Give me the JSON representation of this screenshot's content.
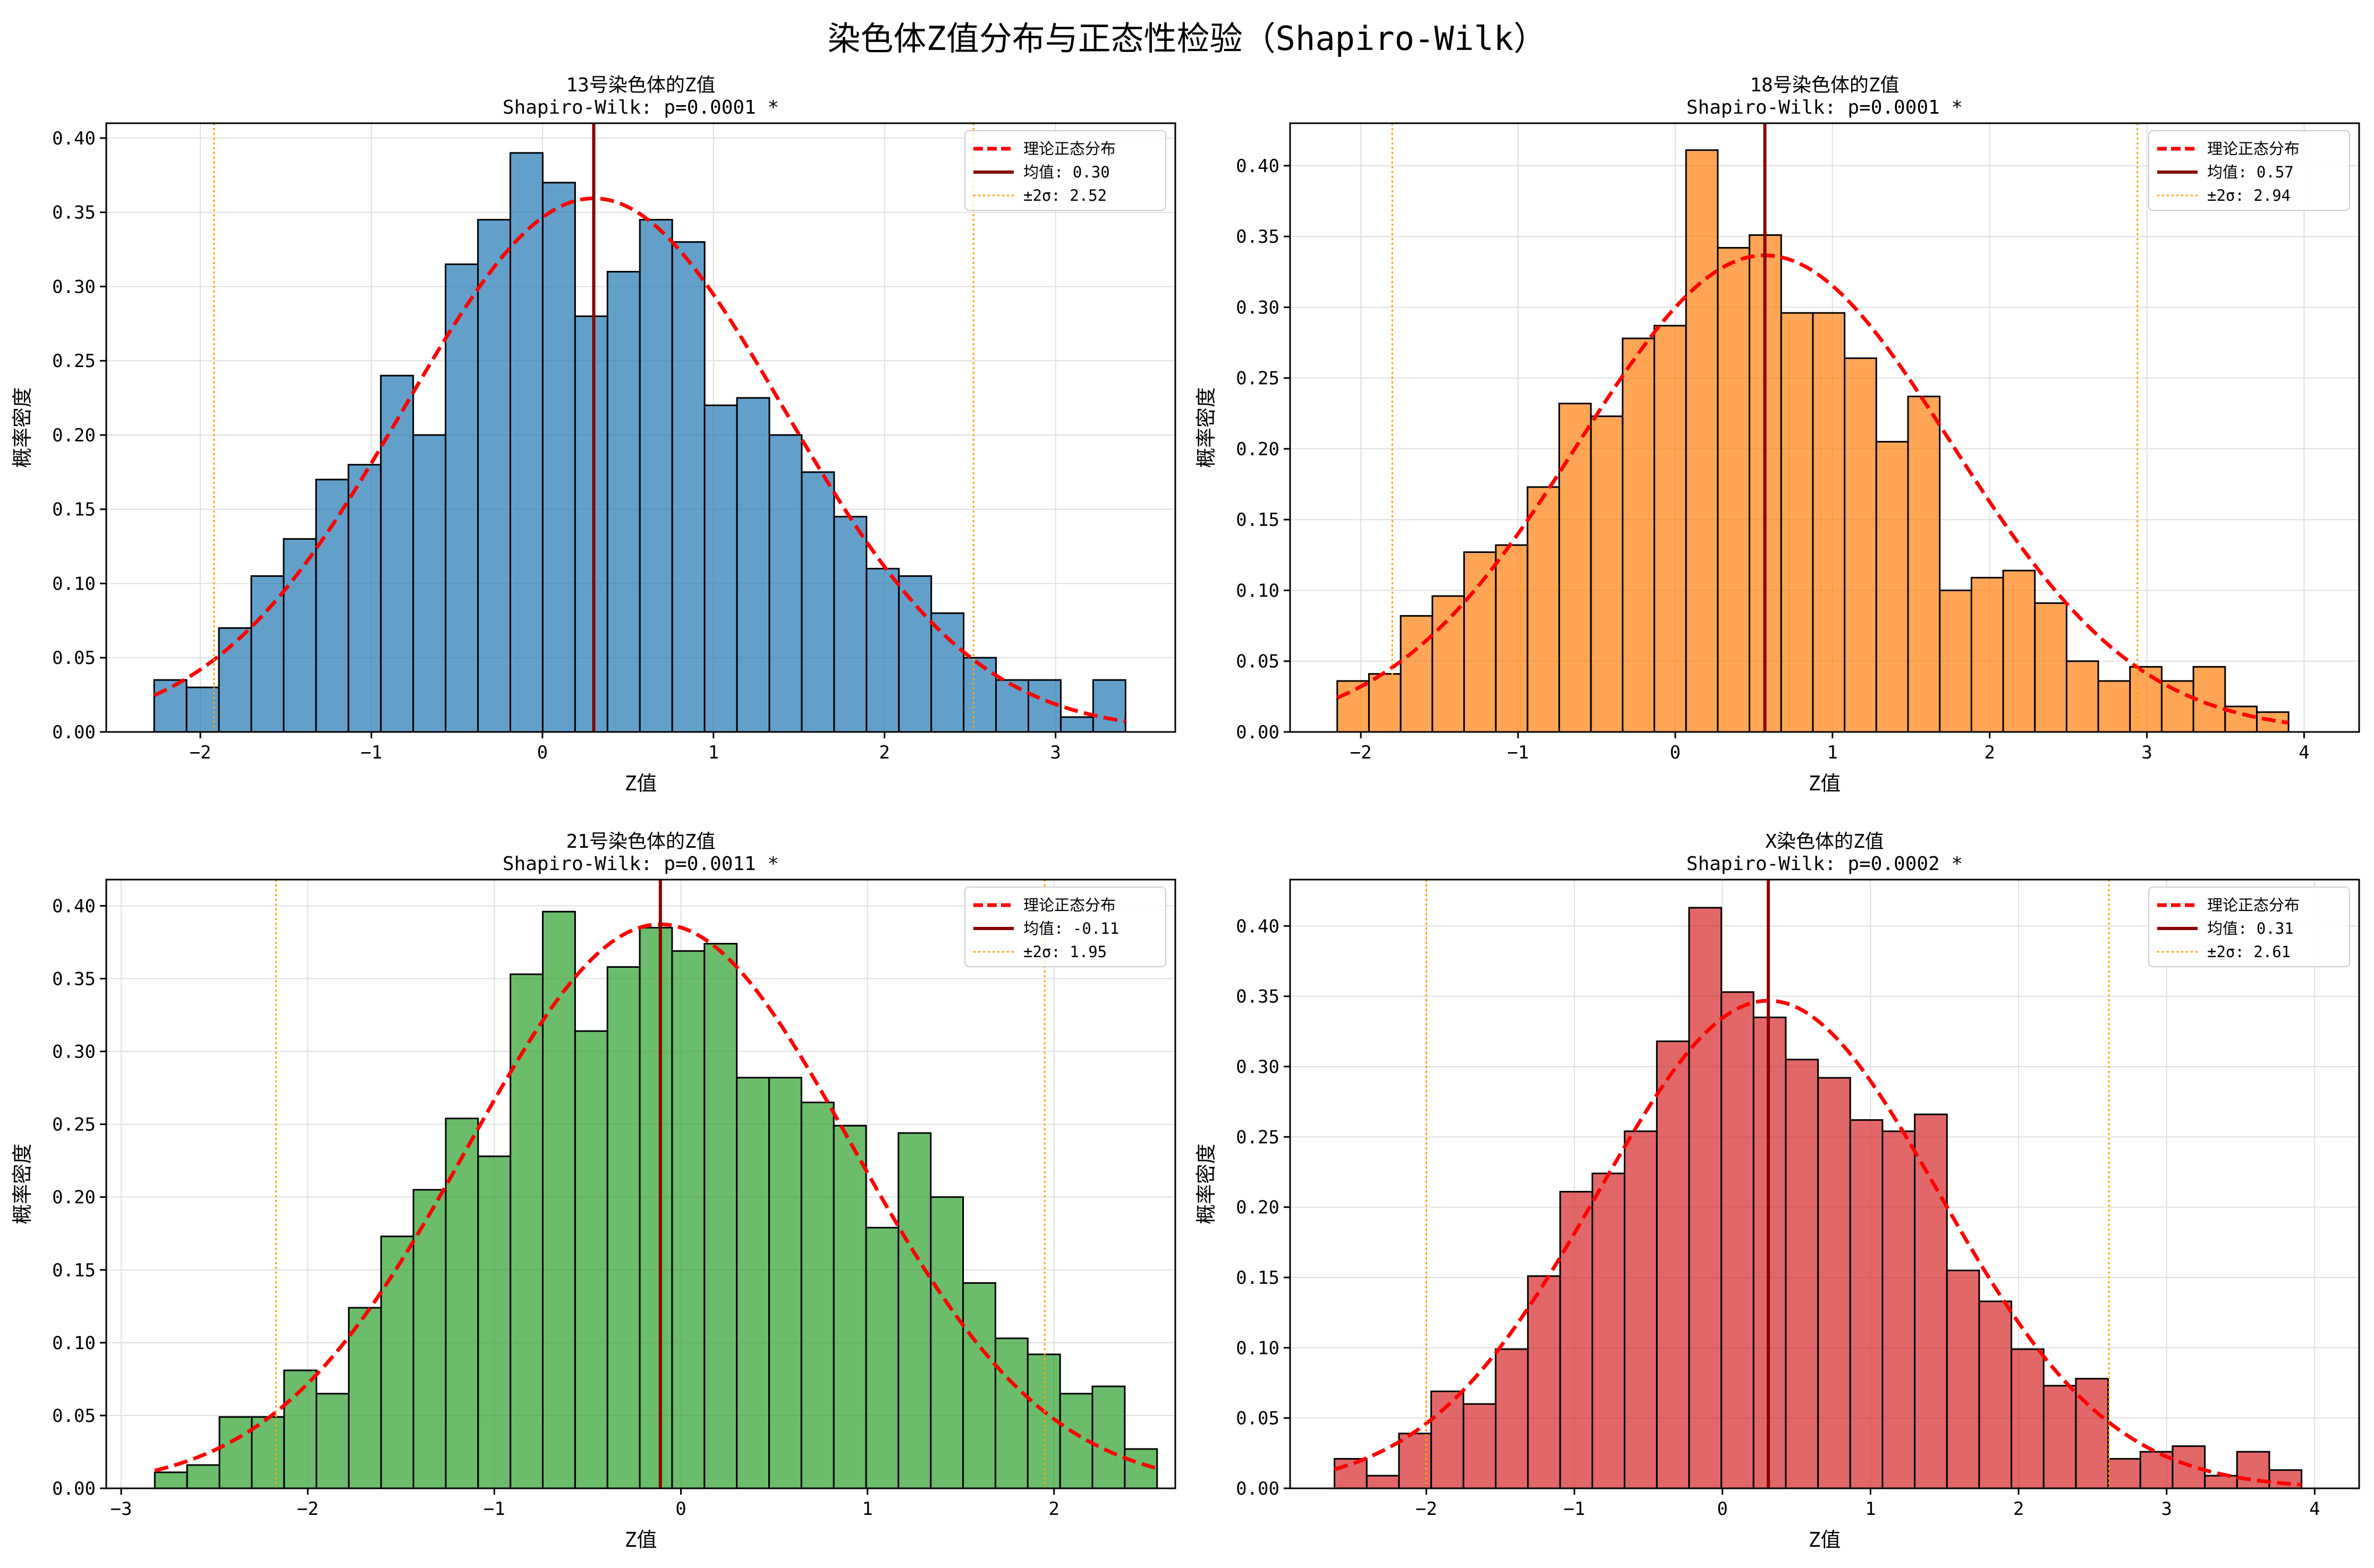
{
  "suptitle": "染色体Z值分布与正态性检验（Shapiro-Wilk）",
  "colors": {
    "normal_curve": "#ff0000",
    "mean_line": "#8b0000",
    "sigma_line": "#ffa500",
    "grid": "#e0e0e0"
  },
  "legend_labels": {
    "normal": "理论正态分布"
  },
  "chart_data": [
    {
      "type": "bar",
      "title": "13号染色体的Z值",
      "subtitle": "Shapiro-Wilk: p=0.0001 *",
      "xlabel": "Z值",
      "ylabel": "概率密度",
      "bar_color": "#1f77b4",
      "bin_start": -2.27,
      "bin_width": 0.1893,
      "values": [
        0.035,
        0.03,
        0.07,
        0.105,
        0.13,
        0.17,
        0.18,
        0.24,
        0.2,
        0.315,
        0.345,
        0.39,
        0.37,
        0.28,
        0.31,
        0.345,
        0.33,
        0.22,
        0.225,
        0.2,
        0.175,
        0.145,
        0.11,
        0.105,
        0.08,
        0.05,
        0.035,
        0.035,
        0.01,
        0.035
      ],
      "mean": 0.3,
      "std": 1.11,
      "mean_label": "均值: 0.30",
      "sigma_label": "±2σ: 2.52",
      "sigma_lines": [
        -1.92,
        2.52
      ],
      "xlim": [
        -2.55,
        3.7
      ],
      "ylim": [
        0,
        0.41
      ],
      "xticks": [
        -2,
        -1,
        0,
        1,
        2,
        3
      ],
      "xtick_labels": [
        "−2",
        "−1",
        "0",
        "1",
        "2",
        "3"
      ],
      "yticks": [
        0.0,
        0.05,
        0.1,
        0.15,
        0.2,
        0.25,
        0.3,
        0.35,
        0.4
      ],
      "ytick_labels": [
        "0.00",
        "0.05",
        "0.10",
        "0.15",
        "0.20",
        "0.25",
        "0.30",
        "0.35",
        "0.40"
      ],
      "grid": true,
      "legend": "top-right"
    },
    {
      "type": "bar",
      "title": "18号染色体的Z值",
      "subtitle": "Shapiro-Wilk: p=0.0001 *",
      "xlabel": "Z值",
      "ylabel": "概率密度",
      "bar_color": "#ff7f0e",
      "bin_start": -2.15,
      "bin_width": 0.2017,
      "values": [
        0.036,
        0.041,
        0.082,
        0.096,
        0.127,
        0.132,
        0.173,
        0.232,
        0.223,
        0.278,
        0.287,
        0.411,
        0.342,
        0.351,
        0.296,
        0.296,
        0.264,
        0.205,
        0.237,
        0.1,
        0.109,
        0.114,
        0.091,
        0.05,
        0.036,
        0.046,
        0.036,
        0.046,
        0.018,
        0.014
      ],
      "mean": 0.57,
      "std": 1.185,
      "mean_label": "均值: 0.57",
      "sigma_label": "±2σ: 2.94",
      "sigma_lines": [
        -1.8,
        2.94
      ],
      "xlim": [
        -2.45,
        4.35
      ],
      "ylim": [
        0,
        0.43
      ],
      "xticks": [
        -2,
        -1,
        0,
        1,
        2,
        3,
        4
      ],
      "xtick_labels": [
        "−2",
        "−1",
        "0",
        "1",
        "2",
        "3",
        "4"
      ],
      "yticks": [
        0.0,
        0.05,
        0.1,
        0.15,
        0.2,
        0.25,
        0.3,
        0.35,
        0.4
      ],
      "ytick_labels": [
        "0.00",
        "0.05",
        "0.10",
        "0.15",
        "0.20",
        "0.25",
        "0.30",
        "0.35",
        "0.40"
      ],
      "grid": true,
      "legend": "top-right"
    },
    {
      "type": "bar",
      "title": "21号染色体的Z值",
      "subtitle": "Shapiro-Wilk: p=0.0011 *",
      "xlabel": "Z值",
      "ylabel": "概率密度",
      "bar_color": "#2ca02c",
      "bin_start": -2.82,
      "bin_width": 0.1733,
      "values": [
        0.011,
        0.016,
        0.049,
        0.049,
        0.081,
        0.065,
        0.124,
        0.173,
        0.205,
        0.254,
        0.228,
        0.353,
        0.396,
        0.314,
        0.358,
        0.385,
        0.369,
        0.374,
        0.282,
        0.282,
        0.265,
        0.249,
        0.179,
        0.244,
        0.2,
        0.141,
        0.103,
        0.092,
        0.065,
        0.07,
        0.027
      ],
      "mean": -0.11,
      "std": 1.03,
      "mean_label": "均值: -0.11",
      "sigma_label": "±2σ: 1.95",
      "sigma_lines": [
        -2.17,
        1.95
      ],
      "xlim": [
        -3.08,
        2.65
      ],
      "ylim": [
        0,
        0.418
      ],
      "xticks": [
        -3,
        -2,
        -1,
        0,
        1,
        2
      ],
      "xtick_labels": [
        "−3",
        "−2",
        "−1",
        "0",
        "1",
        "2"
      ],
      "yticks": [
        0.0,
        0.05,
        0.1,
        0.15,
        0.2,
        0.25,
        0.3,
        0.35,
        0.4
      ],
      "ytick_labels": [
        "0.00",
        "0.05",
        "0.10",
        "0.15",
        "0.20",
        "0.25",
        "0.30",
        "0.35",
        "0.40"
      ],
      "grid": true,
      "legend": "top-right"
    },
    {
      "type": "bar",
      "title": "X染色体的Z值",
      "subtitle": "Shapiro-Wilk: p=0.0002 *",
      "xlabel": "Z值",
      "ylabel": "概率密度",
      "bar_color": "#d62728",
      "bin_start": -2.62,
      "bin_width": 0.2177,
      "values": [
        0.021,
        0.009,
        0.039,
        0.069,
        0.06,
        0.099,
        0.151,
        0.211,
        0.224,
        0.254,
        0.318,
        0.413,
        0.353,
        0.335,
        0.305,
        0.292,
        0.262,
        0.254,
        0.266,
        0.155,
        0.133,
        0.099,
        0.073,
        0.078,
        0.021,
        0.026,
        0.03,
        0.009,
        0.026,
        0.013
      ],
      "mean": 0.31,
      "std": 1.15,
      "mean_label": "均值: 0.31",
      "sigma_label": "±2σ: 2.61",
      "sigma_lines": [
        -2.0,
        2.61
      ],
      "xlim": [
        -2.92,
        4.3
      ],
      "ylim": [
        0,
        0.433
      ],
      "xticks": [
        -2,
        -1,
        0,
        1,
        2,
        3,
        4
      ],
      "xtick_labels": [
        "−2",
        "−1",
        "0",
        "1",
        "2",
        "3",
        "4"
      ],
      "yticks": [
        0.0,
        0.05,
        0.1,
        0.15,
        0.2,
        0.25,
        0.3,
        0.35,
        0.4
      ],
      "ytick_labels": [
        "0.00",
        "0.05",
        "0.10",
        "0.15",
        "0.20",
        "0.25",
        "0.30",
        "0.35",
        "0.40"
      ],
      "grid": true,
      "legend": "top-right"
    }
  ]
}
